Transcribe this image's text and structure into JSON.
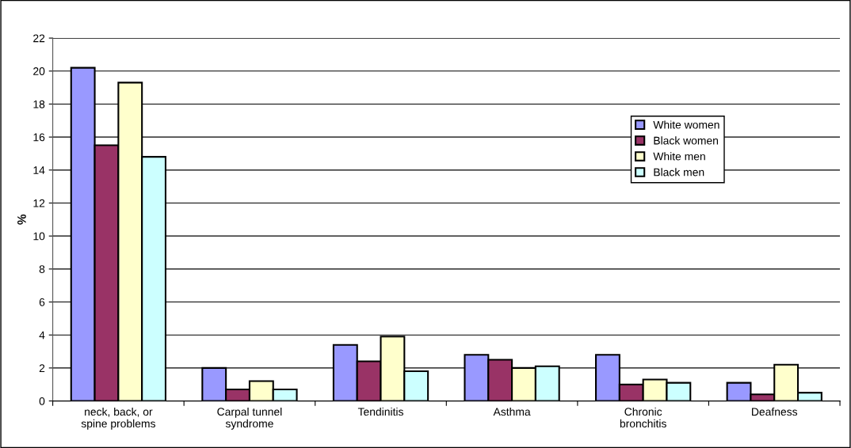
{
  "chart_data": {
    "type": "bar",
    "ylabel": "%",
    "categories": [
      "neck, back, or\nspine problems",
      "Carpal tunnel\nsyndrome",
      "Tendinitis",
      "Asthma",
      "Chronic\nbronchitis",
      "Deafness"
    ],
    "series": [
      {
        "name": "White women",
        "color": "#9999ff",
        "values": [
          20.2,
          2.0,
          3.4,
          2.8,
          2.8,
          1.1
        ]
      },
      {
        "name": "Black women",
        "color": "#993366",
        "values": [
          15.5,
          0.7,
          2.4,
          2.5,
          1.0,
          0.4
        ]
      },
      {
        "name": "White men",
        "color": "#ffffcc",
        "values": [
          19.3,
          1.2,
          3.9,
          2.0,
          1.3,
          2.2
        ]
      },
      {
        "name": "Black men",
        "color": "#ccffff",
        "values": [
          14.8,
          0.7,
          1.8,
          2.1,
          1.1,
          0.5
        ]
      }
    ],
    "ylim": [
      0,
      22
    ],
    "yticks": [
      0,
      2,
      4,
      6,
      8,
      10,
      12,
      14,
      16,
      18,
      20,
      22
    ],
    "grid": "y",
    "legend": "top right"
  }
}
